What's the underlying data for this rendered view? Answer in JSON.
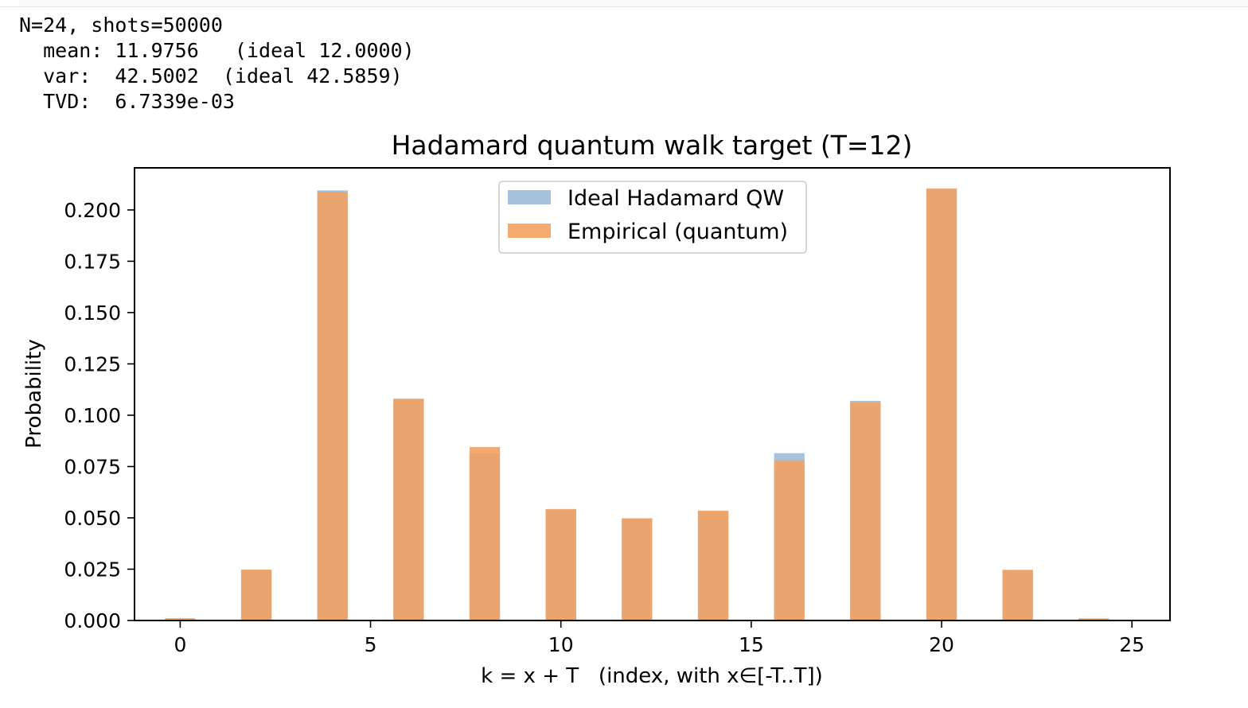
{
  "output": {
    "lines": [
      "N=24, shots=50000",
      "  mean: 11.9756   (ideal 12.0000)",
      "  var:  42.5002  (ideal 42.5859)",
      "  TVD:  6.7339e-03"
    ]
  },
  "chart_data": {
    "type": "bar",
    "title": "Hadamard quantum walk target (T=12)",
    "xlabel": "k = x + T   (index, with x∈[-T..T])",
    "ylabel": "Probability",
    "xlim": [
      -1.2,
      26.0
    ],
    "ylim": [
      0,
      0.2205
    ],
    "xticks": [
      0,
      5,
      10,
      15,
      20,
      25
    ],
    "yticks": [
      0.0,
      0.025,
      0.05,
      0.075,
      0.1,
      0.125,
      0.15,
      0.175,
      0.2
    ],
    "ytick_labels": [
      "0.000",
      "0.025",
      "0.050",
      "0.075",
      "0.100",
      "0.125",
      "0.150",
      "0.175",
      "0.200"
    ],
    "bar_width": 0.8,
    "grid": false,
    "legend_position": "top-center",
    "x": [
      0,
      2,
      4,
      6,
      8,
      10,
      12,
      14,
      16,
      18,
      20,
      22,
      24
    ],
    "series": [
      {
        "name": "Ideal Hadamard QW",
        "color": "#a5c1dc",
        "values": [
          0.001,
          0.0245,
          0.2095,
          0.108,
          0.0815,
          0.054,
          0.0495,
          0.053,
          0.0815,
          0.107,
          0.21,
          0.0245,
          0.001
        ]
      },
      {
        "name": "Empirical (quantum)",
        "color": "#f2a262",
        "values": [
          0.0011,
          0.0248,
          0.2088,
          0.108,
          0.0845,
          0.0543,
          0.0498,
          0.0535,
          0.078,
          0.1063,
          0.2105,
          0.0247,
          0.001
        ]
      }
    ]
  }
}
